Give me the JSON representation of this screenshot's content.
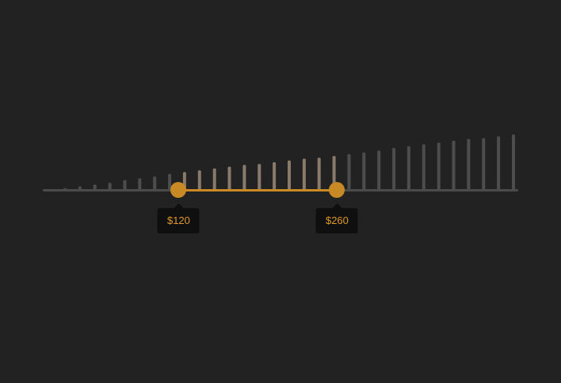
{
  "slider": {
    "min": 0,
    "max": 420,
    "low": 120,
    "high": 260,
    "low_label": "$120",
    "high_label": "$260"
  },
  "chart_data": {
    "type": "bar",
    "title": "",
    "xlabel": "",
    "ylabel": "",
    "values": [
      2,
      4,
      6,
      8,
      11,
      13,
      15,
      18,
      20,
      22,
      24,
      26,
      28,
      29,
      31,
      33,
      35,
      36,
      38,
      40,
      42,
      44,
      47,
      49,
      51,
      53,
      55,
      57,
      58,
      60,
      62
    ]
  },
  "colors": {
    "background": "#222222",
    "track": "#4a4a4a",
    "accent": "#c98a26",
    "bar_inactive": "#4d4d4d",
    "bar_active": "#8a7a6a",
    "tooltip_bg": "#0f0f0f",
    "tooltip_text": "#e0982a"
  }
}
